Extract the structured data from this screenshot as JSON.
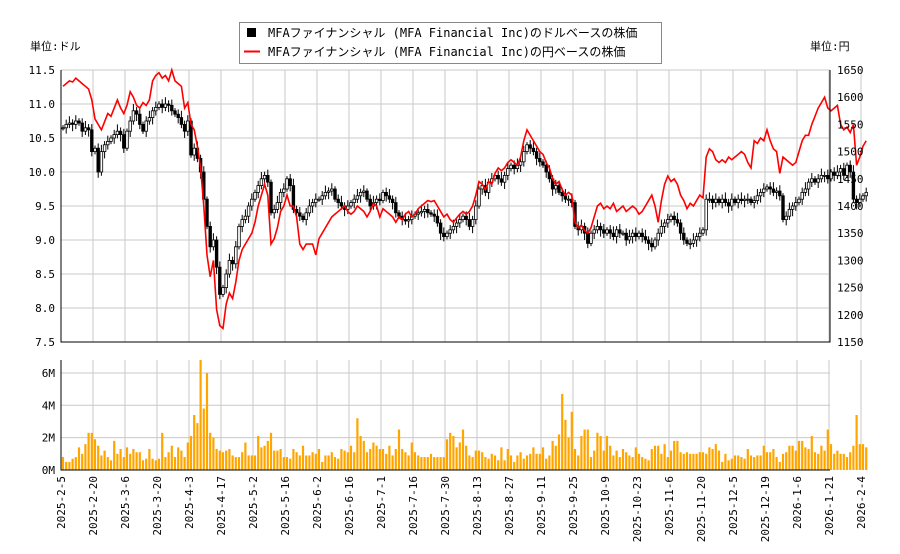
{
  "chart_data": {
    "type": "candlestick",
    "unit_left": "単位:ドル",
    "unit_right": "単位:円",
    "legend": [
      {
        "label": "MFAファイナンシャル (MFA Financial Inc)のドルベースの株価",
        "color": "#000000",
        "marker": "square"
      },
      {
        "label": "MFAファイナンシャル (MFA Financial Inc)の円ベースの株価",
        "color": "#ff0000",
        "marker": "line"
      }
    ],
    "legend_position": "top-center",
    "grid": true,
    "ylim_usd": [
      7.5,
      11.5
    ],
    "yticks_usd": [
      "11.5",
      "11.0",
      "10.5",
      "10.0",
      "9.5",
      "9.0",
      "8.5",
      "8.0",
      "7.5"
    ],
    "ylim_jpy": [
      1150,
      1650
    ],
    "yticks_jpy": [
      "1650",
      "1600",
      "1550",
      "1500",
      "1450",
      "1400",
      "1350",
      "1300",
      "1250",
      "1200",
      "1150"
    ],
    "volume_ylim_millions": [
      0,
      6.8
    ],
    "volume_ticks": [
      "6M",
      "4M",
      "2M",
      "0M"
    ],
    "volume_color": "#ffa500",
    "yen_line_color": "#ff0000",
    "x_tick_labels": [
      "2025-2-5",
      "2025-2-20",
      "2025-3-6",
      "2025-3-20",
      "2025-4-3",
      "2025-4-17",
      "2025-5-2",
      "2025-5-16",
      "2025-6-2",
      "2025-6-16",
      "2025-7-1",
      "2025-7-16",
      "2025-7-30",
      "2025-8-13",
      "2025-8-27",
      "2025-9-11",
      "2025-9-25",
      "2025-10-9",
      "2025-10-23",
      "2025-11-6",
      "2025-11-20",
      "2025-12-5",
      "2025-12-19",
      "2026-1-6",
      "2026-1-21",
      "2026-2-4"
    ],
    "x_tick_every_n_days": 10,
    "close_usd": [
      10.65,
      10.7,
      10.72,
      10.7,
      10.75,
      10.72,
      10.6,
      10.65,
      10.62,
      10.3,
      10.35,
      10.0,
      10.3,
      10.4,
      10.45,
      10.5,
      10.55,
      10.6,
      10.55,
      10.35,
      10.6,
      10.75,
      10.9,
      10.85,
      10.7,
      10.6,
      10.75,
      10.8,
      10.9,
      10.95,
      11.0,
      10.95,
      11.0,
      10.98,
      10.9,
      10.85,
      10.8,
      10.7,
      10.6,
      10.75,
      10.25,
      10.35,
      10.2,
      10.0,
      9.6,
      9.2,
      8.9,
      9.0,
      8.6,
      8.2,
      8.3,
      8.5,
      8.7,
      8.65,
      8.9,
      9.2,
      9.3,
      9.35,
      9.5,
      9.6,
      9.7,
      9.8,
      9.9,
      9.95,
      9.85,
      9.4,
      9.45,
      9.55,
      9.7,
      9.75,
      9.9,
      9.8,
      9.45,
      9.4,
      9.35,
      9.3,
      9.4,
      9.5,
      9.55,
      9.6,
      9.6,
      9.65,
      9.7,
      9.72,
      9.75,
      9.6,
      9.55,
      9.5,
      9.45,
      9.5,
      9.55,
      9.6,
      9.65,
      9.7,
      9.72,
      9.6,
      9.5,
      9.55,
      9.6,
      9.58,
      9.7,
      9.65,
      9.6,
      9.55,
      9.4,
      9.35,
      9.3,
      9.28,
      9.3,
      9.35,
      9.38,
      9.4,
      9.42,
      9.45,
      9.4,
      9.38,
      9.35,
      9.25,
      9.1,
      9.05,
      9.1,
      9.15,
      9.2,
      9.25,
      9.3,
      9.35,
      9.3,
      9.2,
      9.3,
      9.5,
      9.75,
      9.8,
      9.7,
      9.85,
      9.9,
      9.95,
      9.9,
      9.85,
      9.95,
      10.05,
      10.1,
      10.05,
      10.1,
      10.15,
      10.3,
      10.4,
      10.35,
      10.3,
      10.2,
      10.15,
      10.1,
      10.0,
      9.9,
      9.75,
      9.8,
      9.7,
      9.65,
      9.6,
      9.6,
      9.55,
      9.2,
      9.15,
      9.2,
      9.1,
      8.95,
      9.1,
      9.15,
      9.2,
      9.15,
      9.1,
      9.15,
      9.1,
      9.05,
      9.15,
      9.1,
      9.1,
      9.0,
      9.05,
      9.1,
      9.05,
      9.1,
      9.05,
      9.0,
      8.95,
      8.9,
      9.0,
      9.1,
      9.2,
      9.25,
      9.3,
      9.35,
      9.3,
      9.25,
      9.1,
      9.0,
      8.95,
      8.95,
      9.0,
      9.05,
      9.1,
      9.15,
      9.6,
      9.6,
      9.55,
      9.6,
      9.55,
      9.6,
      9.55,
      9.5,
      9.6,
      9.55,
      9.6,
      9.58,
      9.6,
      9.6,
      9.55,
      9.58,
      9.65,
      9.7,
      9.75,
      9.78,
      9.75,
      9.7,
      9.72,
      9.65,
      9.3,
      9.35,
      9.45,
      9.5,
      9.55,
      9.6,
      9.7,
      9.75,
      9.85,
      9.9,
      9.85,
      9.9,
      9.95,
      9.95,
      9.9,
      10.0,
      9.95,
      10.0,
      10.05,
      9.95,
      10.1,
      10.0,
      9.6,
      9.55,
      9.6,
      9.65,
      9.7
    ],
    "close_jpy": [
      1620,
      1625,
      1630,
      1628,
      1635,
      1630,
      1625,
      1620,
      1615,
      1595,
      1560,
      1550,
      1540,
      1555,
      1570,
      1565,
      1580,
      1595,
      1580,
      1570,
      1585,
      1610,
      1600,
      1585,
      1580,
      1590,
      1585,
      1595,
      1630,
      1640,
      1645,
      1635,
      1640,
      1630,
      1650,
      1630,
      1625,
      1620,
      1580,
      1590,
      1550,
      1540,
      1510,
      1470,
      1400,
      1310,
      1270,
      1300,
      1210,
      1180,
      1175,
      1220,
      1240,
      1230,
      1260,
      1300,
      1320,
      1330,
      1340,
      1350,
      1370,
      1400,
      1420,
      1440,
      1420,
      1330,
      1340,
      1360,
      1390,
      1400,
      1420,
      1400,
      1400,
      1380,
      1330,
      1320,
      1330,
      1330,
      1330,
      1310,
      1340,
      1350,
      1360,
      1370,
      1380,
      1385,
      1390,
      1395,
      1400,
      1390,
      1385,
      1390,
      1400,
      1395,
      1390,
      1380,
      1390,
      1405,
      1400,
      1380,
      1395,
      1390,
      1385,
      1380,
      1370,
      1380,
      1375,
      1385,
      1390,
      1380,
      1385,
      1395,
      1400,
      1405,
      1410,
      1408,
      1410,
      1400,
      1390,
      1380,
      1385,
      1375,
      1370,
      1378,
      1385,
      1390,
      1385,
      1390,
      1400,
      1420,
      1445,
      1440,
      1430,
      1445,
      1440,
      1460,
      1470,
      1465,
      1470,
      1480,
      1485,
      1480,
      1475,
      1490,
      1520,
      1540,
      1530,
      1520,
      1510,
      1500,
      1495,
      1480,
      1470,
      1450,
      1440,
      1445,
      1430,
      1420,
      1425,
      1420,
      1370,
      1360,
      1365,
      1355,
      1350,
      1360,
      1380,
      1400,
      1405,
      1395,
      1400,
      1395,
      1405,
      1390,
      1395,
      1400,
      1390,
      1395,
      1400,
      1395,
      1385,
      1390,
      1400,
      1410,
      1420,
      1400,
      1370,
      1410,
      1440,
      1455,
      1445,
      1450,
      1440,
      1420,
      1410,
      1395,
      1405,
      1400,
      1410,
      1420,
      1415,
      1490,
      1505,
      1500,
      1485,
      1480,
      1485,
      1480,
      1490,
      1485,
      1490,
      1495,
      1500,
      1495,
      1480,
      1470,
      1520,
      1515,
      1525,
      1520,
      1540,
      1520,
      1505,
      1500,
      1460,
      1490,
      1485,
      1480,
      1475,
      1480,
      1500,
      1520,
      1530,
      1530,
      1550,
      1565,
      1580,
      1590,
      1600,
      1580,
      1575,
      1580,
      1585,
      1550,
      1540,
      1545,
      1535,
      1550,
      1475,
      1490,
      1510,
      1520
    ],
    "volume_millions": [
      0.8,
      0.5,
      0.5,
      0.7,
      0.8,
      1.4,
      1.0,
      1.6,
      2.3,
      2.3,
      1.9,
      1.5,
      0.9,
      1.2,
      0.8,
      0.6,
      1.8,
      1.0,
      1.3,
      0.8,
      1.4,
      1.0,
      1.3,
      1.1,
      1.1,
      0.6,
      0.7,
      1.3,
      0.7,
      0.6,
      0.7,
      2.3,
      0.8,
      1.1,
      1.5,
      0.8,
      1.4,
      1.2,
      0.8,
      1.7,
      2.1,
      3.4,
      2.9,
      6.9,
      3.8,
      6.0,
      2.3,
      2.0,
      1.3,
      1.2,
      1.1,
      1.2,
      1.3,
      0.9,
      0.8,
      0.8,
      1.1,
      1.7,
      0.9,
      0.9,
      0.9,
      2.1,
      1.4,
      1.5,
      1.8,
      2.3,
      1.2,
      1.2,
      1.3,
      0.8,
      0.8,
      0.7,
      1.3,
      1.1,
      0.9,
      1.5,
      0.9,
      0.9,
      1.1,
      1.0,
      1.3,
      0.5,
      0.9,
      0.9,
      1.1,
      0.8,
      0.7,
      1.3,
      1.2,
      1.1,
      1.5,
      1.1,
      3.2,
      2.1,
      1.8,
      1.1,
      1.3,
      1.7,
      1.5,
      1.3,
      1.3,
      1.0,
      1.5,
      0.9,
      1.3,
      2.5,
      1.3,
      1.1,
      0.9,
      1.7,
      1.1,
      0.9,
      0.8,
      0.8,
      0.8,
      1.0,
      0.8,
      0.8,
      0.8,
      0.8,
      1.9,
      2.3,
      2.1,
      1.4,
      1.7,
      2.5,
      1.5,
      0.9,
      0.8,
      1.2,
      1.2,
      1.1,
      0.8,
      0.7,
      1.0,
      0.9,
      0.6,
      1.4,
      0.6,
      1.3,
      0.9,
      0.5,
      0.9,
      1.1,
      0.7,
      0.9,
      1.0,
      1.4,
      1.0,
      1.0,
      1.4,
      0.7,
      0.9,
      1.8,
      1.5,
      2.2,
      4.7,
      3.1,
      2.0,
      3.6,
      1.3,
      0.9,
      2.1,
      2.5,
      2.5,
      0.8,
      1.2,
      2.3,
      2.1,
      1.2,
      2.1,
      1.5,
      0.9,
      1.2,
      0.8,
      1.3,
      1.1,
      0.9,
      0.8,
      1.4,
      1.0,
      0.8,
      0.7,
      0.6,
      1.3,
      1.5,
      1.5,
      1.0,
      1.6,
      0.8,
      1.2,
      1.8,
      1.8,
      1.1,
      1.0,
      1.1,
      1.0,
      1.0,
      1.0,
      1.1,
      1.1,
      1.0,
      1.4,
      1.3,
      1.6,
      1.2,
      0.5,
      1.0,
      0.6,
      0.7,
      0.9,
      0.9,
      0.8,
      0.7,
      1.3,
      0.9,
      0.8,
      0.9,
      0.9,
      1.5,
      1.1,
      1.1,
      1.3,
      0.8,
      0.5,
      1.0,
      1.1,
      1.5,
      1.5,
      1.2,
      1.8,
      1.8,
      1.4,
      1.3,
      2.1,
      1.1,
      1.0,
      1.5,
      1.2,
      2.5,
      1.6,
      1.0,
      1.2,
      1.0,
      1.0,
      0.8,
      1.1,
      1.5,
      3.4,
      1.6,
      1.6,
      1.4
    ]
  }
}
